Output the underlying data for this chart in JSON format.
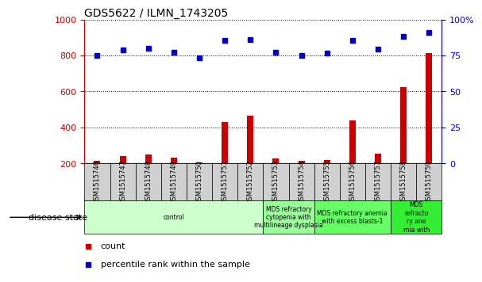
{
  "title": "GDS5622 / ILMN_1743205",
  "samples": [
    "GSM1515746",
    "GSM1515747",
    "GSM1515748",
    "GSM1515749",
    "GSM1515750",
    "GSM1515751",
    "GSM1515752",
    "GSM1515753",
    "GSM1515754",
    "GSM1515755",
    "GSM1515756",
    "GSM1515757",
    "GSM1515758",
    "GSM1515759"
  ],
  "counts": [
    215,
    240,
    248,
    230,
    205,
    430,
    465,
    228,
    215,
    220,
    438,
    255,
    625,
    815
  ],
  "percentile_ranks": [
    75,
    79,
    80,
    77.5,
    73.5,
    85.5,
    86,
    77,
    75,
    76.5,
    85.5,
    79.5,
    88.5,
    91
  ],
  "ylim_left": [
    200,
    1000
  ],
  "ylim_right": [
    0,
    100
  ],
  "yticks_left": [
    200,
    400,
    600,
    800,
    1000
  ],
  "yticks_right": [
    0,
    25,
    50,
    75,
    100
  ],
  "bar_color": "#cc0000",
  "dot_color": "#0000cc",
  "disease_groups": [
    {
      "label": "control",
      "start": 0,
      "end": 7,
      "color": "#ccffcc"
    },
    {
      "label": "MDS refractory\ncytopenia with\nmultilineage dysplasia",
      "start": 7,
      "end": 9,
      "color": "#99ff99"
    },
    {
      "label": "MDS refractory anemia\nwith excess blasts-1",
      "start": 9,
      "end": 12,
      "color": "#66ff66"
    },
    {
      "label": "MDS\nrefracto\nry ane\nmia with",
      "start": 12,
      "end": 14,
      "color": "#33ee33"
    }
  ],
  "legend_items": [
    {
      "label": "count",
      "color": "#cc0000"
    },
    {
      "label": "percentile rank within the sample",
      "color": "#0000cc"
    }
  ],
  "xlabel_disease": "disease state"
}
